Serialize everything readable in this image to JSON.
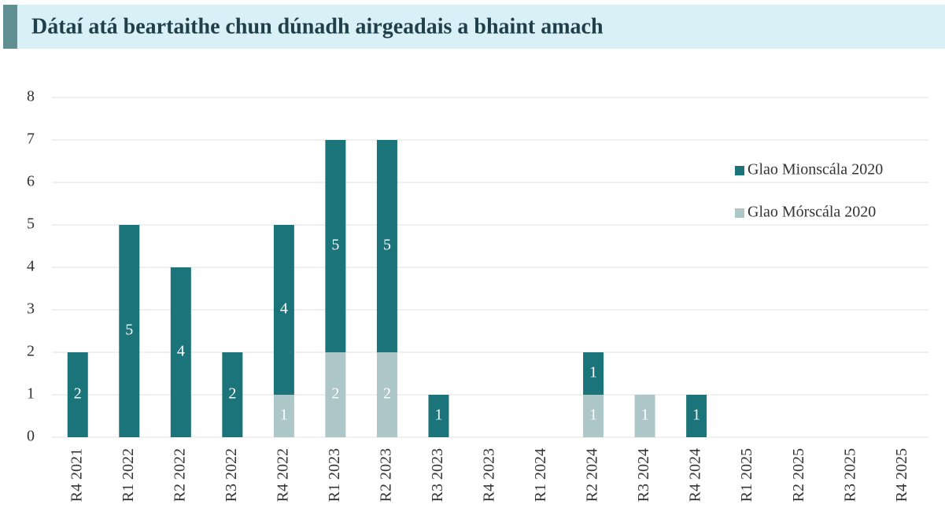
{
  "chart_data": {
    "type": "stacked_bar",
    "title": "Dátaí atá beartaithe chun dúnadh airgeadais a bhaint amach",
    "categories": [
      "R4 2021",
      "R1 2022",
      "R2 2022",
      "R3 2022",
      "R4 2022",
      "R1 2023",
      "R2 2023",
      "R3 2023",
      "R4 2023",
      "R1 2024",
      "R2 2024",
      "R3 2024",
      "R4 2024",
      "R1 2025",
      "R2 2025",
      "R3 2025",
      "R4 2025"
    ],
    "series": [
      {
        "name": "Glao Mórscála 2020",
        "color": "#adc6c8",
        "values": [
          null,
          null,
          null,
          null,
          1,
          2,
          2,
          null,
          null,
          null,
          1,
          1,
          null,
          null,
          null,
          null,
          null
        ]
      },
      {
        "name": "Glao Mionscála 2020",
        "color": "#1b7479",
        "values": [
          2,
          5,
          4,
          2,
          4,
          5,
          5,
          1,
          null,
          null,
          1,
          null,
          1,
          null,
          null,
          null,
          null
        ]
      }
    ],
    "ylim": [
      0,
      8
    ],
    "yticks": [
      0,
      1,
      2,
      3,
      4,
      5,
      6,
      7,
      8
    ],
    "grid": true,
    "legend": "right"
  }
}
